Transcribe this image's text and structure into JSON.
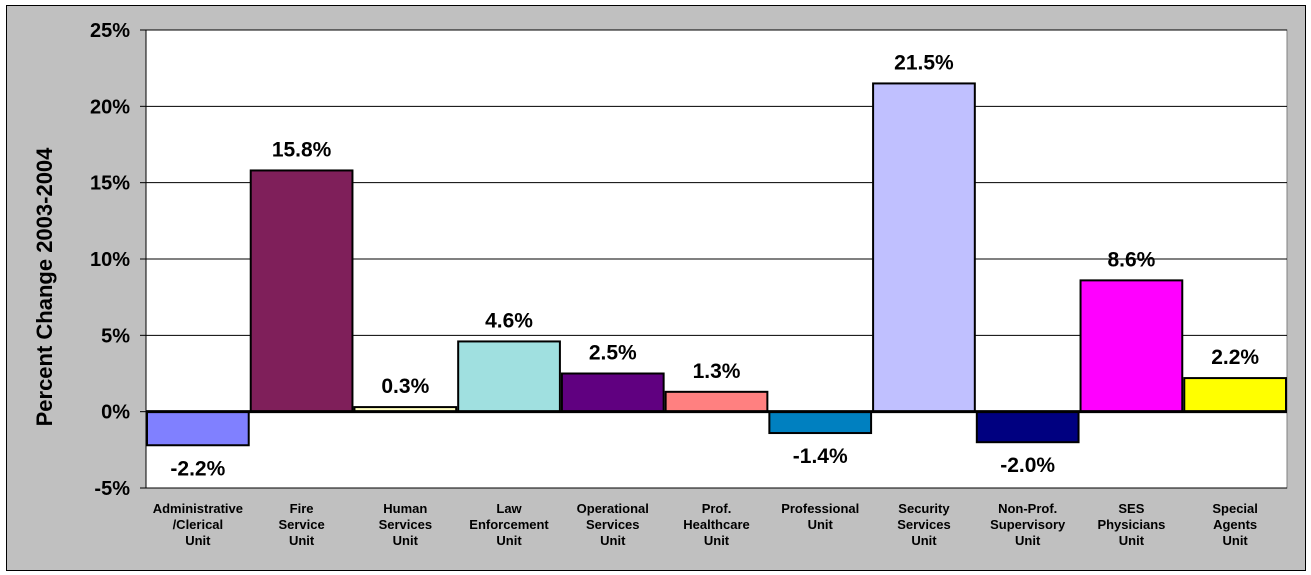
{
  "chart_data": {
    "type": "bar",
    "title": "",
    "xlabel": "",
    "ylabel": "Percent Change 2003-2004",
    "ylim": [
      -5,
      25
    ],
    "yticks": [
      -5,
      0,
      5,
      10,
      15,
      20,
      25
    ],
    "ytick_labels": [
      "-5%",
      "0%",
      "5%",
      "10%",
      "15%",
      "20%",
      "25%"
    ],
    "grid": true,
    "legend": "none",
    "categories": [
      [
        "Administrative",
        "/Clerical",
        "Unit"
      ],
      [
        "Fire",
        "Service",
        "Unit"
      ],
      [
        "Human",
        "Services",
        "Unit"
      ],
      [
        "Law",
        "Enforcement",
        "Unit"
      ],
      [
        "Operational",
        "Services",
        "Unit"
      ],
      [
        "Prof.",
        "Healthcare",
        "Unit"
      ],
      [
        "Professional",
        "Unit"
      ],
      [
        "Security",
        "Services",
        "Unit"
      ],
      [
        "Non-Prof.",
        "Supervisory",
        "Unit"
      ],
      [
        "SES",
        "Physicians",
        "Unit"
      ],
      [
        "Special",
        "Agents",
        "Unit"
      ]
    ],
    "values": [
      -2.2,
      15.8,
      0.3,
      4.6,
      2.5,
      1.3,
      -1.4,
      21.5,
      -2.0,
      8.6,
      2.2
    ],
    "value_labels": [
      "-2.2%",
      "15.8%",
      "0.3%",
      "4.6%",
      "2.5%",
      "1.3%",
      "-1.4%",
      "21.5%",
      "-2.0%",
      "8.6%",
      "2.2%"
    ],
    "colors": [
      "#8080ff",
      "#7f1f5a",
      "#ffffc0",
      "#a0e0e0",
      "#600080",
      "#ff8080",
      "#0080c0",
      "#c0c0ff",
      "#000080",
      "#ff00ff",
      "#ffff00"
    ],
    "plot_background": "#ffffff",
    "chart_background": "#c0c0c0"
  }
}
